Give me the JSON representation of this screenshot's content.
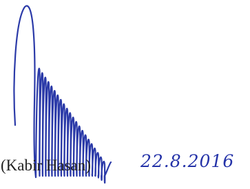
{
  "signature": {
    "name": "(Kabir Hasan)",
    "date": "22.8.2016"
  }
}
